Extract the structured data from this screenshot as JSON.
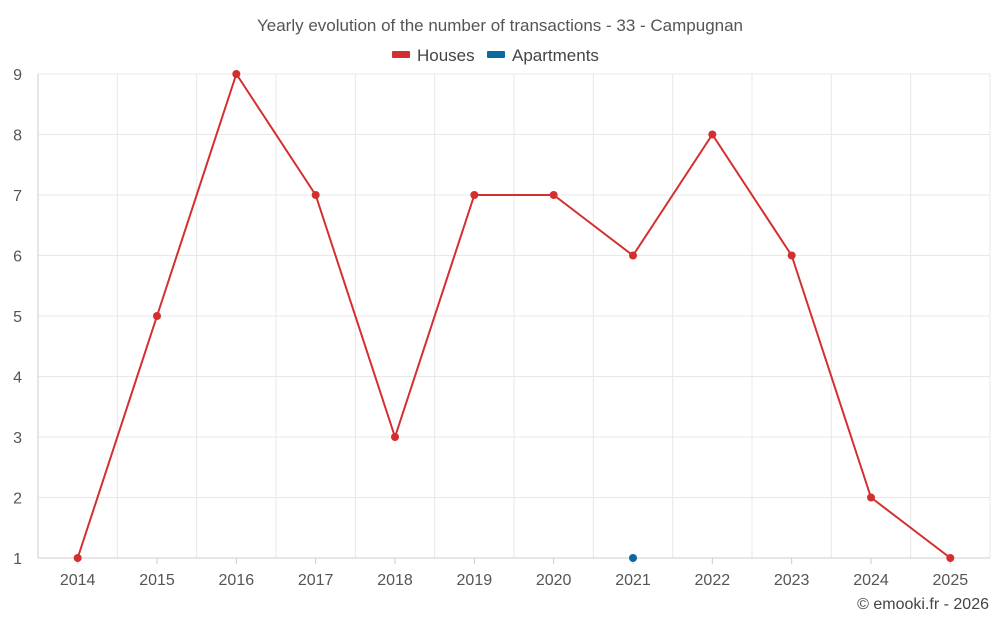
{
  "chart_data": {
    "type": "line",
    "title": "Yearly evolution of the number of transactions - 33 - Campugnan",
    "categories": [
      "2014",
      "2015",
      "2016",
      "2017",
      "2018",
      "2019",
      "2020",
      "2021",
      "2022",
      "2023",
      "2024",
      "2025"
    ],
    "series": [
      {
        "name": "Houses",
        "color": "#d32f2f",
        "values": [
          1,
          5,
          9,
          7,
          3,
          7,
          7,
          6,
          8,
          6,
          2,
          1
        ]
      },
      {
        "name": "Apartments",
        "color": "#0d6aa0",
        "values": [
          null,
          null,
          null,
          null,
          null,
          null,
          null,
          1,
          null,
          null,
          null,
          null
        ]
      }
    ],
    "ylim": [
      1,
      9
    ],
    "yticks": [
      1,
      2,
      3,
      4,
      5,
      6,
      7,
      8,
      9
    ],
    "xlabel": "",
    "ylabel": "",
    "grid": true,
    "legend_position": "top-center"
  },
  "footer": {
    "credit": "© emooki.fr - 2026"
  }
}
